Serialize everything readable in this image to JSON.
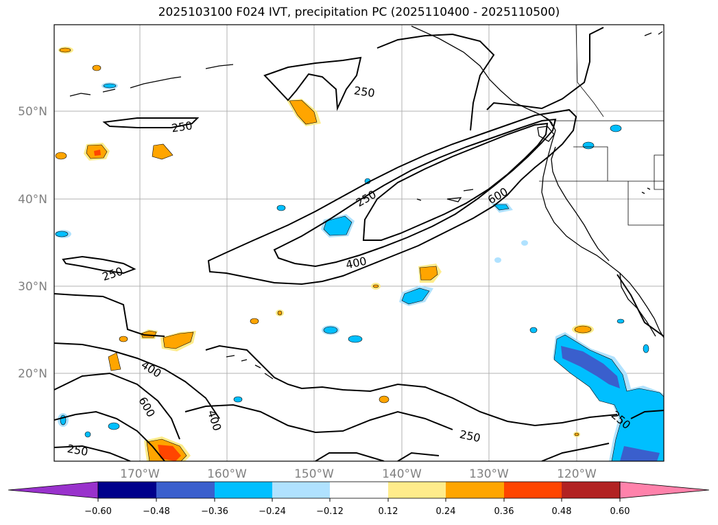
{
  "title": "2025103100 F024 IVT, precipitation PC (2025110400 - 2025110500)",
  "lat_labels": [
    "50°N",
    "40°N",
    "30°N",
    "20°N"
  ],
  "lon_labels": [
    "170°W",
    "160°W",
    "150°W",
    "140°W",
    "130°W",
    "120°W"
  ],
  "contour_levels": [
    "250",
    "400",
    "600"
  ],
  "contour_labels": [
    "250",
    "250",
    "250",
    "250",
    "400",
    "600",
    "400",
    "600",
    "400",
    "250",
    "250",
    "250"
  ],
  "colorbar": {
    "colors": [
      "#9932cc",
      "#00008b",
      "#3a5fcd",
      "#00bfff",
      "#b0e2ff",
      "#ffffff",
      "#ffec8b",
      "#ffa500",
      "#ff4500",
      "#b22222",
      "#ff82ab"
    ],
    "ticks": [
      "−0.60",
      "−0.48",
      "−0.36",
      "−0.24",
      "−0.12",
      "0.12",
      "0.24",
      "0.36",
      "0.48",
      "0.60"
    ]
  }
}
